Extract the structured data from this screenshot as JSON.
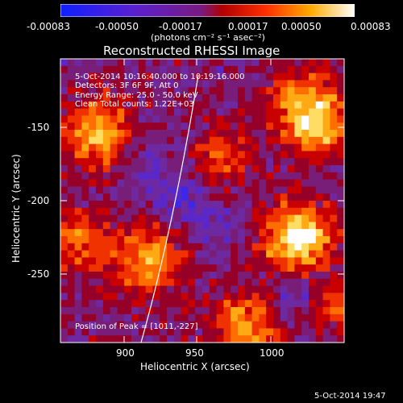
{
  "colorbar": {
    "tick_labels": [
      "-0.00083",
      "-0.00050",
      "-0.00017",
      "0.00017",
      "0.00050",
      "0.00083"
    ],
    "units": "(photons cm⁻² s⁻¹ asec⁻²)"
  },
  "plot": {
    "title": "Reconstructed RHESSI Image",
    "xlabel": "Heliocentric X (arcsec)",
    "ylabel": "Heliocentric Y (arcsec)",
    "x_ticks": [
      "900",
      "950",
      "1000"
    ],
    "y_ticks": [
      "-150",
      "-200",
      "-250"
    ],
    "annotations": [
      "5-Oct-2014 10:16:40.000 to 10:19:16.000",
      "Detectors: 3F 6F 9F, Att 0",
      "Energy Range: 25.0 - 50.0 keV",
      "Clean    Total counts: 1.22E+03"
    ],
    "peak_text": "Position of Peak = [1011,-227]"
  },
  "footer": {
    "timestamp": "5-Oct-2014 19:47"
  }
}
